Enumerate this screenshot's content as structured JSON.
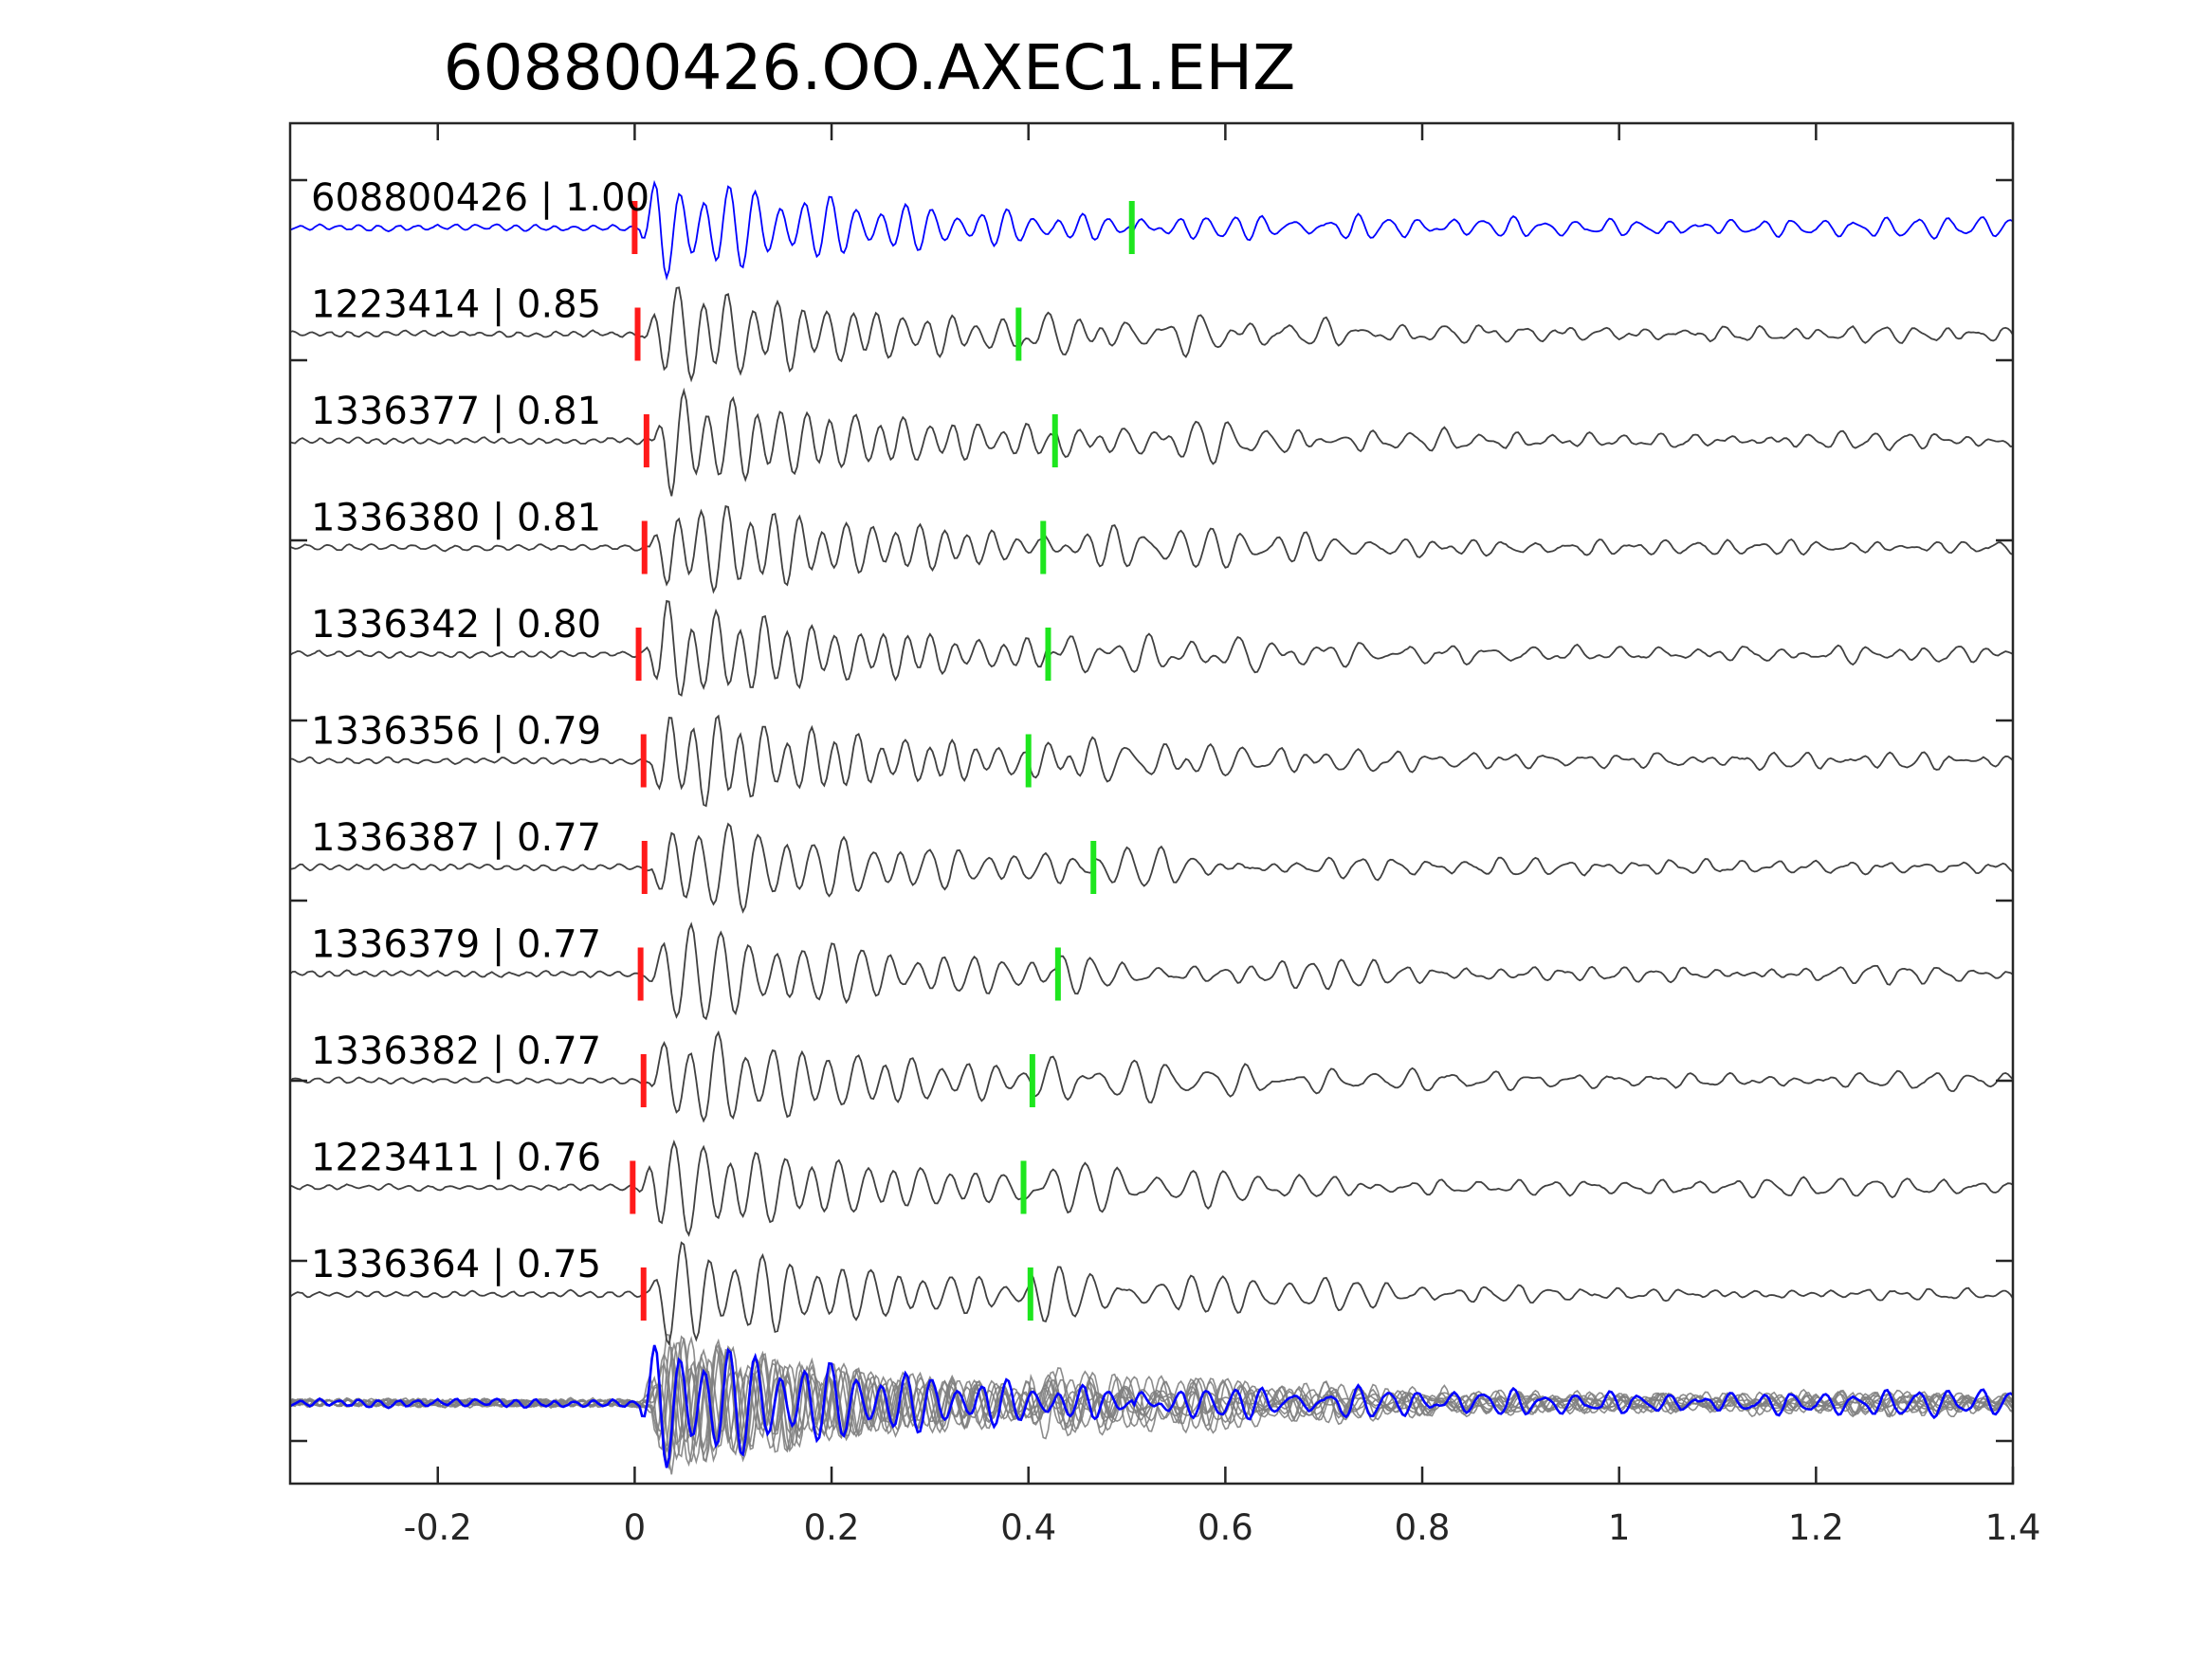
{
  "chart_data": {
    "type": "line",
    "title": "608800426.OO.AXEC1.EHZ",
    "xlabel": "",
    "ylabel": "",
    "xlim": [
      -0.35,
      1.4
    ],
    "x_ticks": [
      -0.2,
      0,
      0.2,
      0.4,
      0.6,
      0.8,
      1,
      1.2,
      1.4
    ],
    "x_tick_labels": [
      "-0.2",
      "0",
      "0.2",
      "0.4",
      "0.6",
      "0.8",
      "1",
      "1.2",
      "1.4"
    ],
    "grid": false,
    "colors": {
      "template": "#0000ff",
      "match": "#404040",
      "overlay": "#7f7f7f",
      "p_pick": "#ff1a1a",
      "s_pick": "#1ee61e",
      "axis": "#262626"
    },
    "traces": [
      {
        "label": "608800426 | 1.00",
        "id": "608800426",
        "cc": 1.0,
        "p_pick": 0.0,
        "s_pick": 0.505,
        "role": "template"
      },
      {
        "label": "1223414 | 0.85",
        "id": "1223414",
        "cc": 0.85,
        "p_pick": 0.003,
        "s_pick": 0.39,
        "role": "match"
      },
      {
        "label": "1336377 | 0.81",
        "id": "1336377",
        "cc": 0.81,
        "p_pick": 0.012,
        "s_pick": 0.427,
        "role": "match"
      },
      {
        "label": "1336380 | 0.81",
        "id": "1336380",
        "cc": 0.81,
        "p_pick": 0.01,
        "s_pick": 0.415,
        "role": "match"
      },
      {
        "label": "1336342 | 0.80",
        "id": "1336342",
        "cc": 0.8,
        "p_pick": 0.004,
        "s_pick": 0.42,
        "role": "match"
      },
      {
        "label": "1336356 | 0.79",
        "id": "1336356",
        "cc": 0.79,
        "p_pick": 0.009,
        "s_pick": 0.4,
        "role": "match"
      },
      {
        "label": "1336387 | 0.77",
        "id": "1336387",
        "cc": 0.77,
        "p_pick": 0.01,
        "s_pick": 0.466,
        "role": "match"
      },
      {
        "label": "1336379 | 0.77",
        "id": "1336379",
        "cc": 0.77,
        "p_pick": 0.006,
        "s_pick": 0.43,
        "role": "match"
      },
      {
        "label": "1336382 | 0.77",
        "id": "1336382",
        "cc": 0.77,
        "p_pick": 0.009,
        "s_pick": 0.404,
        "role": "match"
      },
      {
        "label": "1223411 | 0.76",
        "id": "1223411",
        "cc": 0.76,
        "p_pick": -0.002,
        "s_pick": 0.395,
        "role": "match"
      },
      {
        "label": "1336364 | 0.75",
        "id": "1336364",
        "cc": 0.75,
        "p_pick": 0.009,
        "s_pick": 0.402,
        "role": "match"
      }
    ]
  }
}
